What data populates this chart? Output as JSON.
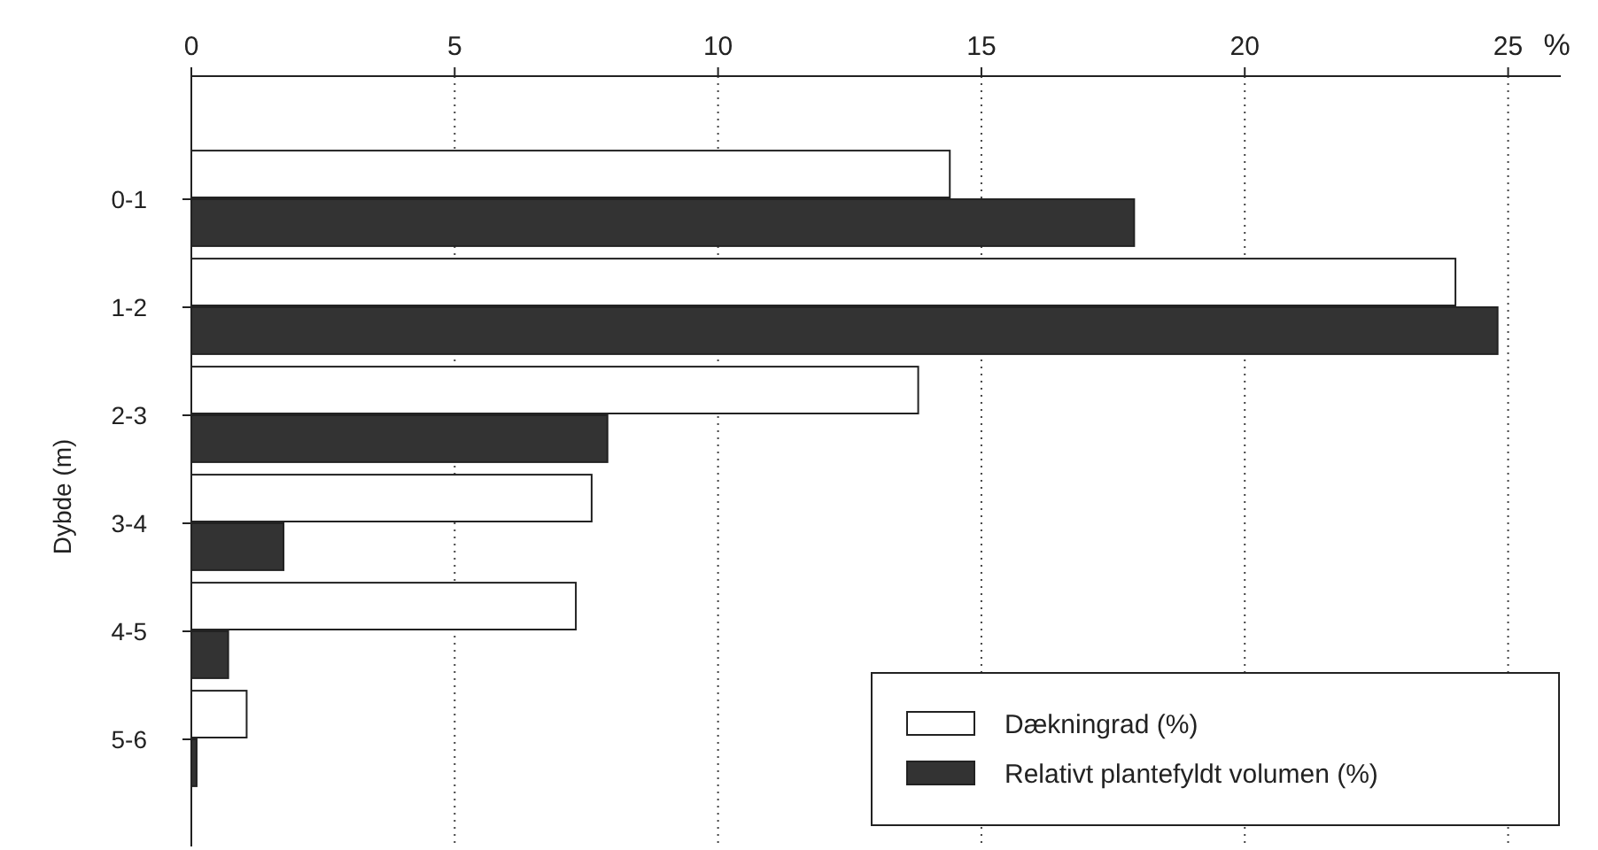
{
  "chart_data": {
    "type": "bar",
    "orientation": "horizontal",
    "ylabel": "Dybde (m)",
    "xlabel": "%",
    "categories": [
      "0-1",
      "1-2",
      "2-3",
      "3-4",
      "4-5",
      "5-6"
    ],
    "series": [
      {
        "name": "Dækningrad (%)",
        "color": "#ffffff",
        "values": [
          14.4,
          24.0,
          13.8,
          7.6,
          7.3,
          1.05
        ]
      },
      {
        "name": "Relativt plantefyldt volumen (%)",
        "color": "#333333",
        "values": [
          17.9,
          24.8,
          7.9,
          1.75,
          0.7,
          0.1
        ]
      }
    ],
    "xlim": [
      0,
      26
    ],
    "xticks": [
      0,
      5,
      10,
      15,
      20,
      25
    ],
    "grid": "x",
    "legend": "bottom right"
  }
}
